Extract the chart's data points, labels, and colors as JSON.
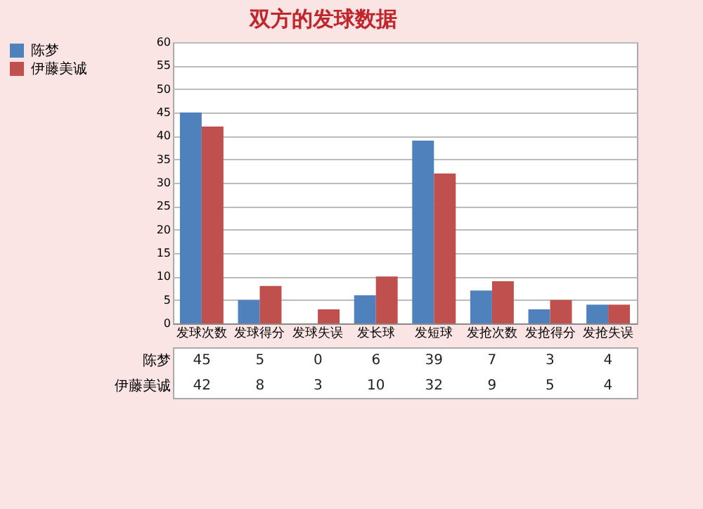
{
  "chart_data": {
    "type": "bar",
    "title": "双方的发球数据",
    "categories": [
      "发球次数",
      "发球得分",
      "发球失误",
      "发长球",
      "发短球",
      "发抢次数",
      "发抢得分",
      "发抢失误"
    ],
    "series": [
      {
        "name": "陈梦",
        "color": "#4f81bd",
        "values": [
          45,
          5,
          0,
          6,
          39,
          7,
          3,
          4
        ]
      },
      {
        "name": "伊藤美诚",
        "color": "#c0504d",
        "values": [
          42,
          8,
          3,
          10,
          32,
          9,
          5,
          4
        ]
      }
    ],
    "ylim": [
      0,
      60
    ],
    "yticks": [
      0,
      5,
      10,
      15,
      20,
      25,
      30,
      35,
      40,
      45,
      50,
      55,
      60
    ],
    "grid": "y",
    "legend": "left",
    "data_labels": true
  }
}
